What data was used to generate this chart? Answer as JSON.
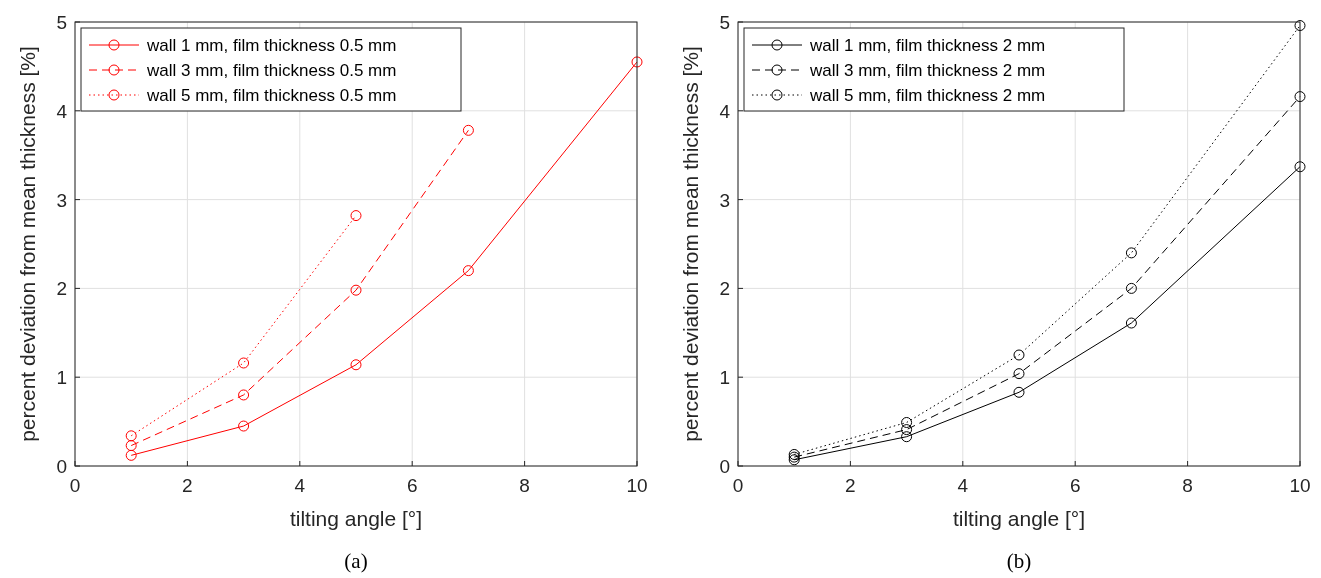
{
  "chart_data": [
    {
      "type": "line",
      "xlabel": "tilting angle [°]",
      "ylabel": "percent deviation from mean thickness [%]",
      "xlim": [
        0,
        10
      ],
      "ylim": [
        0,
        5
      ],
      "xticks": [
        0,
        2,
        4,
        6,
        8,
        10
      ],
      "yticks": [
        0,
        1,
        2,
        3,
        4,
        5
      ],
      "grid": true,
      "legend": "top left",
      "marker": "circle",
      "annotations": [
        "(a)"
      ],
      "series": [
        {
          "name": "wall 1 mm, film thickness 0.5 mm",
          "color": "#ff0000",
          "line_style": "solid",
          "x": [
            1,
            3,
            5,
            7,
            10
          ],
          "values": [
            0.12,
            0.45,
            1.14,
            2.2,
            4.55
          ]
        },
        {
          "name": "wall 3 mm, film thickness 0.5 mm",
          "color": "#ff0000",
          "line_style": "dashed",
          "x": [
            1,
            3,
            5,
            7
          ],
          "values": [
            0.23,
            0.8,
            1.98,
            3.78
          ]
        },
        {
          "name": "wall 5 mm, film thickness 0.5 mm",
          "color": "#ff0000",
          "line_style": "dotted",
          "x": [
            1,
            3,
            5
          ],
          "values": [
            0.34,
            1.16,
            2.82
          ]
        }
      ]
    },
    {
      "type": "line",
      "xlabel": "tilting angle [°]",
      "ylabel": "percent deviation from mean thickness [%]",
      "xlim": [
        0,
        10
      ],
      "ylim": [
        0,
        5
      ],
      "xticks": [
        0,
        2,
        4,
        6,
        8,
        10
      ],
      "yticks": [
        0,
        1,
        2,
        3,
        4,
        5
      ],
      "grid": true,
      "legend": "top left",
      "marker": "circle",
      "annotations": [
        "(b)"
      ],
      "series": [
        {
          "name": "wall 1 mm, film thickness 2 mm",
          "color": "#000000",
          "line_style": "solid",
          "x": [
            1,
            3,
            5,
            7,
            10
          ],
          "values": [
            0.07,
            0.33,
            0.83,
            1.61,
            3.37
          ]
        },
        {
          "name": "wall 3 mm, film thickness 2 mm",
          "color": "#000000",
          "line_style": "dashed",
          "x": [
            1,
            3,
            5,
            7,
            10
          ],
          "values": [
            0.1,
            0.41,
            1.04,
            2.0,
            4.16
          ]
        },
        {
          "name": "wall 5 mm, film thickness 2 mm",
          "color": "#000000",
          "line_style": "dotted",
          "x": [
            1,
            3,
            5,
            7,
            10
          ],
          "values": [
            0.13,
            0.49,
            1.25,
            2.4,
            4.96
          ]
        }
      ]
    }
  ]
}
